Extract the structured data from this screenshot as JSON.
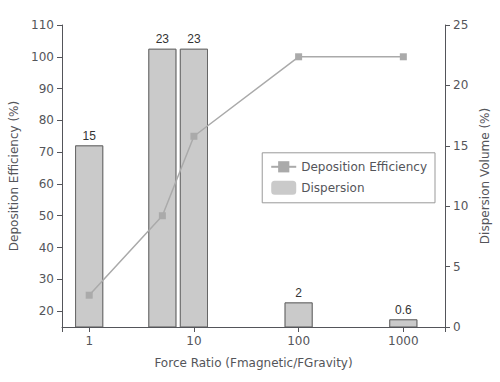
{
  "chart_data": {
    "type": "combo",
    "xlabel": "Force Ratio (Fmagnetic/FGravity)",
    "ylabel": "Deposition Efficiency (%)",
    "y2label": "Dispersion Volume (%)",
    "log": "x",
    "xlim": [
      0.55,
      2500
    ],
    "xticks": [
      1,
      10,
      100,
      1000
    ],
    "ylim": [
      15,
      110
    ],
    "yticks": [
      20,
      30,
      40,
      50,
      60,
      70,
      80,
      90,
      100,
      110
    ],
    "y2lim": [
      0,
      25
    ],
    "y2ticks": [
      0,
      5,
      10,
      15,
      20,
      25
    ],
    "grid": false,
    "legend": "right",
    "series": [
      {
        "name": "Deposition Efficiency",
        "type": "line",
        "x": [
          1,
          5,
          10,
          100,
          1000
        ],
        "values": [
          25,
          50,
          75,
          100,
          100
        ],
        "color": "#aaaaaa",
        "marker": "square"
      },
      {
        "name": "Dispersion",
        "type": "bar",
        "axis": "y2",
        "x": [
          1,
          5,
          10,
          100,
          1000
        ],
        "values": [
          15,
          23,
          23,
          2,
          0.6
        ],
        "color": "#666666",
        "data_labels": true
      }
    ]
  }
}
